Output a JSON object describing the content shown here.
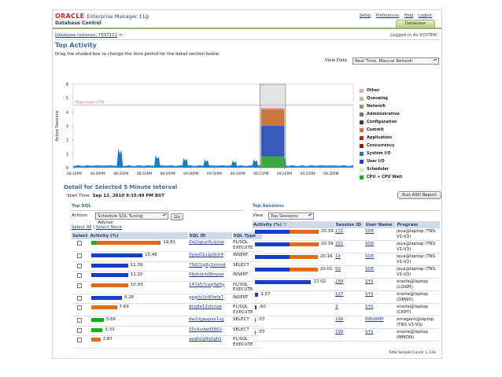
{
  "header": {
    "brand": "ORACLE",
    "product": "Enterprise Manager 11",
    "product_suffix": "g",
    "subtitle": "Database Control",
    "links": [
      "Setup",
      "Preferences",
      "Help",
      "Logout"
    ],
    "tab": "Database"
  },
  "breadcrumb": "Database Instance: TEST112",
  "breadcrumb_sep": ">",
  "logged_in": "Logged in As SYSTEM",
  "page_title": "Top Activity",
  "instruction": "Drag the shaded box to change the time period for the detail section below.",
  "view_data": {
    "label": "View Data",
    "value": "Real Time: Manual Refresh"
  },
  "colors": {
    "other": "#f0a0d0",
    "queueing": "#c8b4a0",
    "network": "#a09070",
    "administrative": "#707070",
    "configuration": "#5a3214",
    "commit": "#e06a1e",
    "application": "#c0220f",
    "concurrency": "#8c1e0a",
    "system_io": "#1e78c8",
    "user_io": "#1440c8",
    "scheduler": "#c8f0c8",
    "cpu": "#16b018",
    "max_cpu": "#e07090",
    "header_blue": "#cfdbe8",
    "title_blue": "#3a6f9d"
  },
  "chart_data": {
    "type": "area",
    "title": "",
    "ylabel": "Active Sessions",
    "ylim": [
      0,
      6
    ],
    "yticks": [
      "0",
      "1",
      "2",
      "3",
      "4",
      "5",
      "6"
    ],
    "xlabel": "",
    "x": [
      "08:35PM",
      "08:40PM",
      "08:45PM",
      "08:50PM",
      "08:55PM",
      "09:00PM",
      "09:05PM",
      "09:10PM",
      "09:15PM",
      "09:20PM",
      "09:25PM",
      "09:30PM"
    ],
    "max_cpu_label": "Maximum CPU",
    "max_cpu_value": 4.5,
    "selection": {
      "from": "09:15PM",
      "to": "09:20PM"
    },
    "legend": [
      "Other",
      "Queueing",
      "Network",
      "Administrative",
      "Configuration",
      "Commit",
      "Application",
      "Concurrency",
      "System I/O",
      "User I/O",
      "Scheduler",
      "CPU + CPU Wait"
    ],
    "legend_placement": "right",
    "spikes": [
      {
        "t": 2.0,
        "cpu": 0.2,
        "sysio": 1.4
      },
      {
        "t": 3.6,
        "cpu": 0.3,
        "sysio": 0.9
      },
      {
        "t": 4.8,
        "cpu": 0.2,
        "sysio": 0.7
      },
      {
        "t": 5.7,
        "cpu": 0.2,
        "sysio": 0.6
      },
      {
        "t": 6.9,
        "cpu": 0.2,
        "sysio": 0.5
      },
      {
        "t": 7.8,
        "cpu": 0.2,
        "sysio": 0.6
      },
      {
        "t": 8.6,
        "cpu": 0.3,
        "sysio": 1.2
      },
      {
        "t": 9.0,
        "cpu": 0.2,
        "sysio": 0.8
      }
    ],
    "activity_block": {
      "start": 8.05,
      "end": 9.05,
      "cpu": 0.8,
      "user_io": 2.2,
      "commit": 1.2,
      "other": 0.1
    }
  },
  "detail": {
    "title": "Detail for Selected 5 Minute Interval",
    "start_label": "Start Time",
    "start_value": "Sep 12, 2010 9:15:49 PM BST",
    "ash_button": "Run ASH Report"
  },
  "top_sql": {
    "title": "Top SQL",
    "actions_label": "Actions",
    "action_value": "Schedule SQL Tuning Advisor",
    "go": "Go",
    "select_all": "Select All",
    "select_none": "Select None",
    "sep": "|",
    "columns": [
      "Select",
      "Activity (%)",
      "SQL ID",
      "SQL Type"
    ],
    "rows": [
      {
        "value": "19.81",
        "blue": 0,
        "green": 0.05,
        "orange": 0.63,
        "sql_id": "0w2qpuc6u2zsp",
        "type": "PL/SQL EXECUTE"
      },
      {
        "value": "15.46",
        "blue": 0.5,
        "green": 0,
        "orange": 0,
        "sql_id": "0yas01u2p9ch4",
        "type": "INSERT"
      },
      {
        "value": "11.30",
        "blue": 0.36,
        "green": 0,
        "orange": 0,
        "sql_id": "75621g9y3xmvd",
        "type": "SELECT"
      },
      {
        "value": "11.20",
        "blue": 0.36,
        "green": 0,
        "orange": 0,
        "sql_id": "0bzhqhhj9mpaa",
        "type": "INSERT"
      },
      {
        "value": "10.93",
        "blue": 0,
        "green": 0,
        "orange": 0.36,
        "sql_id": "147a57cxq3w5y",
        "type": "PL/SQL EXECUTE"
      },
      {
        "value": "9.26",
        "blue": 0.3,
        "green": 0,
        "orange": 0,
        "sql_id": "gxgdv2v90wfa7",
        "type": "INSERT"
      },
      {
        "value": "7.69",
        "blue": 0,
        "green": 0,
        "orange": 0.25,
        "sql_id": "dcq9a12vlcruw",
        "type": "PL/SQL EXECUTE"
      },
      {
        "value": "3.89",
        "blue": 0,
        "green": 0.12,
        "orange": 0,
        "sql_id": "dw2zgaapax1sg",
        "type": "SELECT"
      },
      {
        "value": "3.33",
        "blue": 0,
        "green": 0.11,
        "orange": 0,
        "sql_id": "05s4vdwd5802",
        "type": "SELECT"
      },
      {
        "value": "2.87",
        "blue": 0,
        "green": 0,
        "orange": 0.09,
        "sql_id": "apgb2g9q2gh1",
        "type": "PL/SQL EXECUTE"
      }
    ]
  },
  "top_sessions": {
    "title": "Top Sessions",
    "view_label": "View",
    "view_value": "Top Sessions",
    "columns": [
      "Activity (%)",
      "Session ID",
      "User Name",
      "Program"
    ],
    "rows": [
      {
        "value": "20.39",
        "blue": 0.42,
        "orange": 0.35,
        "green": 0,
        "sid": "131",
        "user": "SOE",
        "program": "java@laptop (TNS V1-V3)"
      },
      {
        "value": "20.39",
        "blue": 0.42,
        "orange": 0.35,
        "green": 0,
        "sid": "201",
        "user": "SOE",
        "program": "java@laptop (TNS V1-V3)"
      },
      {
        "value": "20.16",
        "blue": 0.42,
        "orange": 0.34,
        "green": 0,
        "sid": "14",
        "user": "SOE",
        "program": "java@laptop (TNS V1-V3)"
      },
      {
        "value": "20.01",
        "blue": 0.42,
        "orange": 0.34,
        "green": 0,
        "sid": "69",
        "user": "SOE",
        "program": "java@laptop (TNS V1-V3)"
      },
      {
        "value": "17.02",
        "blue": 0.68,
        "orange": 0,
        "green": 0,
        "sid": "189",
        "user": "SYS",
        "program": "oracle@laptop (LGWR)"
      },
      {
        "value": "1.27",
        "blue": 0.04,
        "orange": 0,
        "green": 0,
        "sid": "127",
        "user": "SYS",
        "program": "oracle@laptop (DBW0)"
      },
      {
        "value": ".60",
        "blue": 0.02,
        "orange": 0,
        "green": 0,
        "sid": "3",
        "user": "SYS",
        "program": "oracle@laptop (CKPT)"
      },
      {
        "value": ".07",
        "blue": 0,
        "orange": 0,
        "green": 0.01,
        "sid": "196",
        "user": "DBSNMP",
        "program": "emagent@laptop (TNS V1-V3)"
      },
      {
        "value": ".07",
        "blue": 0,
        "orange": 0,
        "green": 0.01,
        "sid": "190",
        "user": "SYS",
        "program": "oracle@laptop (MMON)"
      }
    ],
    "total_sample": "Total Sample Count: 1,334"
  }
}
